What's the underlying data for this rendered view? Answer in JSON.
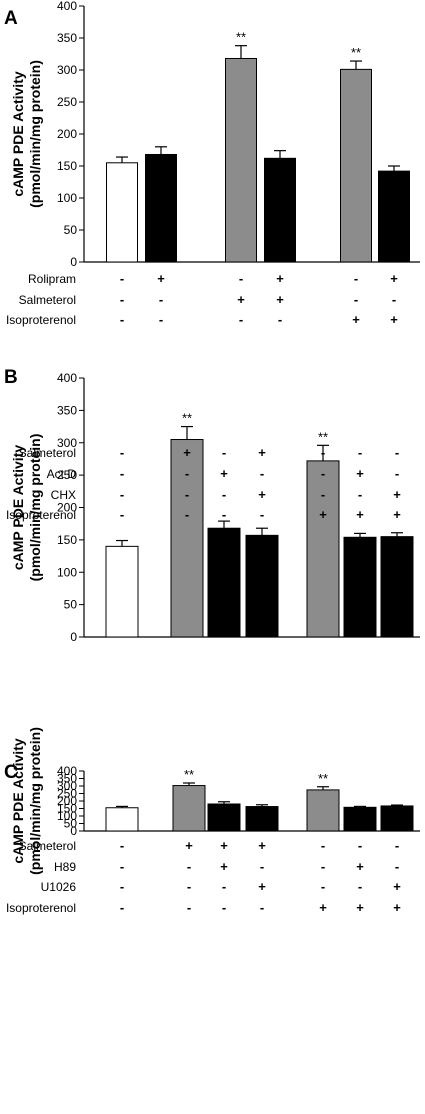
{
  "chart_data": [
    {
      "type": "bar",
      "panel_label": "A",
      "ylabel_line1": "cAMP PDE Activity",
      "ylabel_line2": "(pmol/min/mg protein)",
      "ylim": [
        0,
        400
      ],
      "yticks": [
        0,
        50,
        100,
        150,
        200,
        250,
        300,
        350,
        400
      ],
      "values": [
        155,
        168,
        318,
        162,
        301,
        142
      ],
      "errors": [
        9,
        12,
        20,
        12,
        13,
        8
      ],
      "bar_colors": [
        "#ffffff",
        "#000000",
        "#8c8c8c",
        "#000000",
        "#8c8c8c",
        "#000000"
      ],
      "annotations": [
        "",
        "",
        "**",
        "",
        "**",
        ""
      ],
      "treatment_rows": [
        {
          "label": "Rolipram",
          "signs": [
            "-",
            "+",
            "-",
            "+",
            "-",
            "+"
          ]
        },
        {
          "label": "Salmeterol",
          "signs": [
            "-",
            "-",
            "+",
            "+",
            "-",
            "-"
          ]
        },
        {
          "label": "Isoproterenol",
          "signs": [
            "-",
            "-",
            "-",
            "-",
            "+",
            "+"
          ]
        }
      ]
    },
    {
      "type": "bar",
      "panel_label": "B",
      "ylabel_line1": "cAMP PDE Activity",
      "ylabel_line2": "(pmol/min/mg protein)",
      "ylim": [
        0,
        400
      ],
      "yticks": [
        0,
        50,
        100,
        150,
        200,
        250,
        300,
        350,
        400
      ],
      "values": [
        140,
        305,
        168,
        157,
        272,
        154,
        155
      ],
      "errors": [
        9,
        20,
        11,
        11,
        24,
        6,
        6
      ],
      "bar_colors": [
        "#ffffff",
        "#8c8c8c",
        "#000000",
        "#000000",
        "#8c8c8c",
        "#000000",
        "#000000"
      ],
      "annotations": [
        "",
        "**",
        "",
        "",
        "**",
        "",
        ""
      ],
      "treatment_rows": [
        {
          "label": "Salmeterol",
          "signs": [
            "-",
            "+",
            "-",
            "+",
            "-",
            "-",
            "-"
          ]
        },
        {
          "label": "Act D",
          "signs": [
            "-",
            "-",
            "+",
            "-",
            "-",
            "+",
            "-"
          ]
        },
        {
          "label": "CHX",
          "signs": [
            "-",
            "-",
            "-",
            "+",
            "-",
            "-",
            "+"
          ]
        },
        {
          "label": "Isoproterenol",
          "signs": [
            "-",
            "-",
            "-",
            "-",
            "+",
            "+",
            "+"
          ]
        }
      ]
    },
    {
      "type": "bar",
      "panel_label": "C",
      "ylabel_line1": "cAMP PDE Activity",
      "ylabel_line2": "(pmol/min/mg protein)",
      "ylim": [
        0,
        400
      ],
      "yticks": [
        0,
        50,
        100,
        150,
        200,
        250,
        300,
        350,
        400
      ],
      "values": [
        155,
        303,
        180,
        163,
        274,
        158,
        167
      ],
      "errors": [
        9,
        17,
        15,
        12,
        21,
        6,
        6
      ],
      "bar_colors": [
        "#ffffff",
        "#8c8c8c",
        "#000000",
        "#000000",
        "#8c8c8c",
        "#000000",
        "#000000"
      ],
      "annotations": [
        "",
        "**",
        "",
        "",
        "**",
        "",
        ""
      ],
      "treatment_rows": [
        {
          "label": "Salmeterol",
          "signs": [
            "-",
            "+",
            "+",
            "+",
            "-",
            "-",
            "-"
          ]
        },
        {
          "label": "H89",
          "signs": [
            "-",
            "-",
            "+",
            "-",
            "-",
            "+",
            "-"
          ]
        },
        {
          "label": "U1026",
          "signs": [
            "-",
            "-",
            "-",
            "+",
            "-",
            "-",
            "+"
          ]
        },
        {
          "label": "Isoproterenol",
          "signs": [
            "-",
            "-",
            "-",
            "-",
            "+",
            "+",
            "+"
          ]
        }
      ]
    }
  ]
}
